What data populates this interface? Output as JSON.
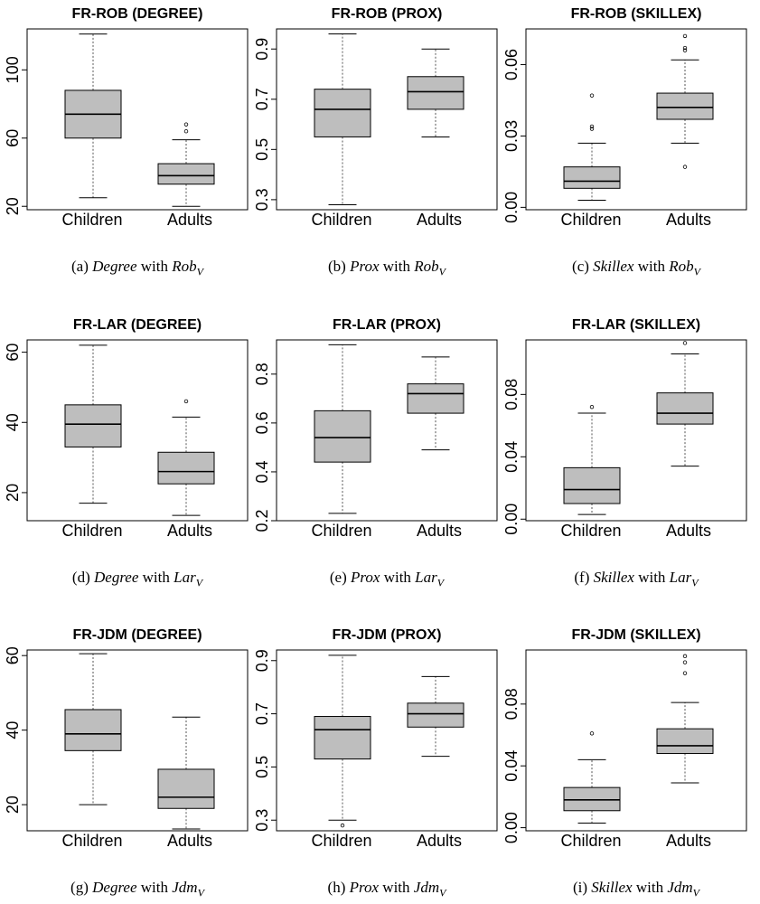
{
  "chart_data": [
    {
      "type": "boxplot",
      "title": "FR-ROB (DEGREE)",
      "categories": [
        "Children",
        "Adults"
      ],
      "ylim": [
        18,
        124
      ],
      "yticks": [
        20,
        60,
        100
      ],
      "boxes": [
        {
          "min": 25,
          "q1": 60,
          "median": 74,
          "q3": 88,
          "max": 121,
          "outliers": []
        },
        {
          "min": 20,
          "q1": 33,
          "median": 38,
          "q3": 45,
          "max": 59,
          "outliers": [
            64,
            68
          ]
        }
      ],
      "caption": {
        "label": "(a)",
        "measure": "Degree",
        "with": "with",
        "metric": "Rob",
        "sub": "V"
      }
    },
    {
      "type": "boxplot",
      "title": "FR-ROB (PROX)",
      "categories": [
        "Children",
        "Adults"
      ],
      "ylim": [
        0.26,
        0.98
      ],
      "yticks": [
        0.3,
        0.5,
        0.7,
        0.9
      ],
      "boxes": [
        {
          "min": 0.28,
          "q1": 0.55,
          "median": 0.66,
          "q3": 0.74,
          "max": 0.96,
          "outliers": []
        },
        {
          "min": 0.55,
          "q1": 0.66,
          "median": 0.73,
          "q3": 0.79,
          "max": 0.9,
          "outliers": []
        }
      ],
      "caption": {
        "label": "(b)",
        "measure": "Prox",
        "with": "with",
        "metric": "Rob",
        "sub": "V"
      }
    },
    {
      "type": "boxplot",
      "title": "FR-ROB (SKILLEX)",
      "categories": [
        "Children",
        "Adults"
      ],
      "ylim": [
        -0.001,
        0.075
      ],
      "yticks": [
        0.0,
        0.03,
        0.06
      ],
      "boxes": [
        {
          "min": 0.003,
          "q1": 0.008,
          "median": 0.011,
          "q3": 0.017,
          "max": 0.027,
          "outliers": [
            0.033,
            0.034,
            0.047
          ]
        },
        {
          "min": 0.027,
          "q1": 0.037,
          "median": 0.042,
          "q3": 0.048,
          "max": 0.062,
          "outliers": [
            0.017,
            0.066,
            0.067,
            0.072
          ]
        }
      ],
      "caption": {
        "label": "(c)",
        "measure": "Skillex",
        "with": "with",
        "metric": "Rob",
        "sub": "V"
      }
    },
    {
      "type": "boxplot",
      "title": "FR-LAR (DEGREE)",
      "categories": [
        "Children",
        "Adults"
      ],
      "ylim": [
        12,
        63.5
      ],
      "yticks": [
        20,
        40,
        60
      ],
      "boxes": [
        {
          "min": 17,
          "q1": 33,
          "median": 39.5,
          "q3": 45,
          "max": 62,
          "outliers": []
        },
        {
          "min": 13.5,
          "q1": 22.5,
          "median": 26,
          "q3": 31.5,
          "max": 41.5,
          "outliers": [
            46
          ]
        }
      ],
      "caption": {
        "label": "(d)",
        "measure": "Degree",
        "with": "with",
        "metric": "Lar",
        "sub": "V"
      }
    },
    {
      "type": "boxplot",
      "title": "FR-LAR (PROX)",
      "categories": [
        "Children",
        "Adults"
      ],
      "ylim": [
        0.2,
        0.94
      ],
      "yticks": [
        0.2,
        0.4,
        0.6,
        0.8
      ],
      "boxes": [
        {
          "min": 0.23,
          "q1": 0.44,
          "median": 0.54,
          "q3": 0.65,
          "max": 0.92,
          "outliers": []
        },
        {
          "min": 0.49,
          "q1": 0.64,
          "median": 0.72,
          "q3": 0.76,
          "max": 0.87,
          "outliers": []
        }
      ],
      "caption": {
        "label": "(e)",
        "measure": "Prox",
        "with": "with",
        "metric": "Lar",
        "sub": "V"
      }
    },
    {
      "type": "boxplot",
      "title": "FR-LAR (SKILLEX)",
      "categories": [
        "Children",
        "Adults"
      ],
      "ylim": [
        -0.001,
        0.115
      ],
      "yticks": [
        0.0,
        0.04,
        0.08
      ],
      "boxes": [
        {
          "min": 0.003,
          "q1": 0.01,
          "median": 0.019,
          "q3": 0.033,
          "max": 0.068,
          "outliers": [
            0.072
          ]
        },
        {
          "min": 0.034,
          "q1": 0.061,
          "median": 0.068,
          "q3": 0.081,
          "max": 0.106,
          "outliers": [
            0.113
          ]
        }
      ],
      "caption": {
        "label": "(f)",
        "measure": "Skillex",
        "with": "with",
        "metric": "Lar",
        "sub": "V"
      }
    },
    {
      "type": "boxplot",
      "title": "FR-JDM (DEGREE)",
      "categories": [
        "Children",
        "Adults"
      ],
      "ylim": [
        13,
        61.5
      ],
      "yticks": [
        20,
        40,
        60
      ],
      "boxes": [
        {
          "min": 20,
          "q1": 34.5,
          "median": 39,
          "q3": 45.5,
          "max": 60.5,
          "outliers": []
        },
        {
          "min": 13.5,
          "q1": 19,
          "median": 22,
          "q3": 29.5,
          "max": 43.5,
          "outliers": []
        }
      ],
      "caption": {
        "label": "(g)",
        "measure": "Degree",
        "with": "with",
        "metric": "Jdm",
        "sub": "V"
      }
    },
    {
      "type": "boxplot",
      "title": "FR-JDM (PROX)",
      "categories": [
        "Children",
        "Adults"
      ],
      "ylim": [
        0.26,
        0.94
      ],
      "yticks": [
        0.3,
        0.5,
        0.7,
        0.9
      ],
      "boxes": [
        {
          "min": 0.3,
          "q1": 0.53,
          "median": 0.64,
          "q3": 0.69,
          "max": 0.92,
          "outliers": [
            0.28
          ]
        },
        {
          "min": 0.54,
          "q1": 0.65,
          "median": 0.7,
          "q3": 0.74,
          "max": 0.84,
          "outliers": []
        }
      ],
      "caption": {
        "label": "(h)",
        "measure": "Prox",
        "with": "with",
        "metric": "Jdm",
        "sub": "V"
      }
    },
    {
      "type": "boxplot",
      "title": "FR-JDM (SKILLEX)",
      "categories": [
        "Children",
        "Adults"
      ],
      "ylim": [
        -0.002,
        0.115
      ],
      "yticks": [
        0.0,
        0.04,
        0.08
      ],
      "boxes": [
        {
          "min": 0.003,
          "q1": 0.011,
          "median": 0.018,
          "q3": 0.026,
          "max": 0.044,
          "outliers": [
            0.061
          ]
        },
        {
          "min": 0.029,
          "q1": 0.048,
          "median": 0.053,
          "q3": 0.064,
          "max": 0.081,
          "outliers": [
            0.1,
            0.107,
            0.111
          ]
        }
      ],
      "caption": {
        "label": "(i)",
        "measure": "Skillex",
        "with": "with",
        "metric": "Jdm",
        "sub": "V"
      }
    }
  ],
  "colors": {
    "box_fill": "#bebebe",
    "stroke": "#000000",
    "whisker": "#555555"
  }
}
